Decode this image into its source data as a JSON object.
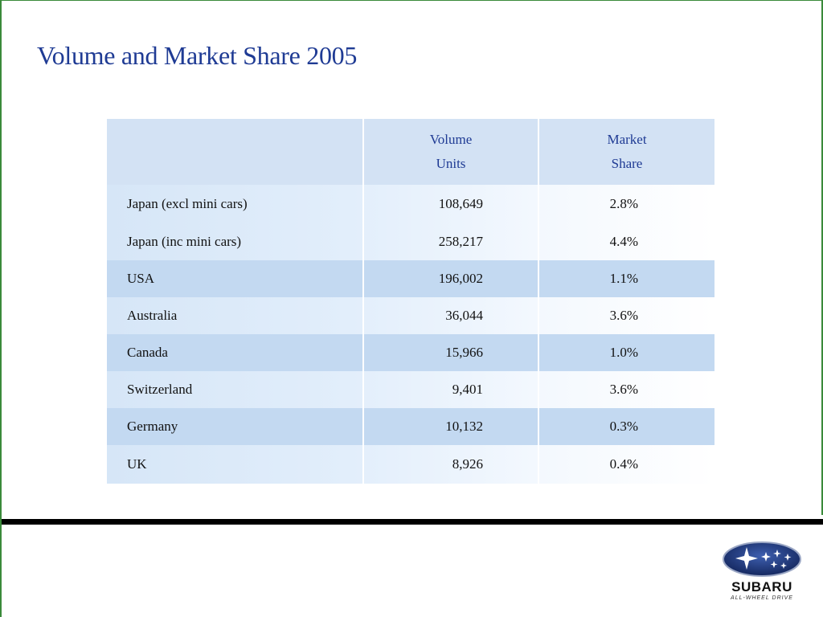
{
  "slide": {
    "title": "Volume and Market Share 2005"
  },
  "table": {
    "headers": {
      "country": "",
      "volume_line1": "Volume",
      "volume_line2": "Units",
      "share_line1": "Market",
      "share_line2": "Share"
    },
    "rows": [
      {
        "country": "Japan (excl mini cars)",
        "volume": "108,649",
        "share": "2.8%"
      },
      {
        "country": "Japan (inc mini cars)",
        "volume": "258,217",
        "share": "4.4%"
      },
      {
        "country": "USA",
        "volume": "196,002",
        "share": "1.1%"
      },
      {
        "country": "Australia",
        "volume": "36,044",
        "share": "3.6%"
      },
      {
        "country": "Canada",
        "volume": "15,966",
        "share": "1.0%"
      },
      {
        "country": "Switzerland",
        "volume": "9,401",
        "share": "3.6%"
      },
      {
        "country": "Germany",
        "volume": "10,132",
        "share": "0.3%"
      },
      {
        "country": "UK",
        "volume": "8,926",
        "share": "0.4%"
      }
    ]
  },
  "logo": {
    "wordmark": "SUBARU",
    "tagline": "ALL-WHEEL DRIVE",
    "icon": "subaru-stars-icon",
    "colors": {
      "oval": "#1a2f6e",
      "star": "#ffffff"
    }
  },
  "colors": {
    "title": "#1f3b94",
    "header_fill": "#d3e2f4",
    "band_fill": "#c3d9f1",
    "frame_accent": "#3a8a3a"
  }
}
